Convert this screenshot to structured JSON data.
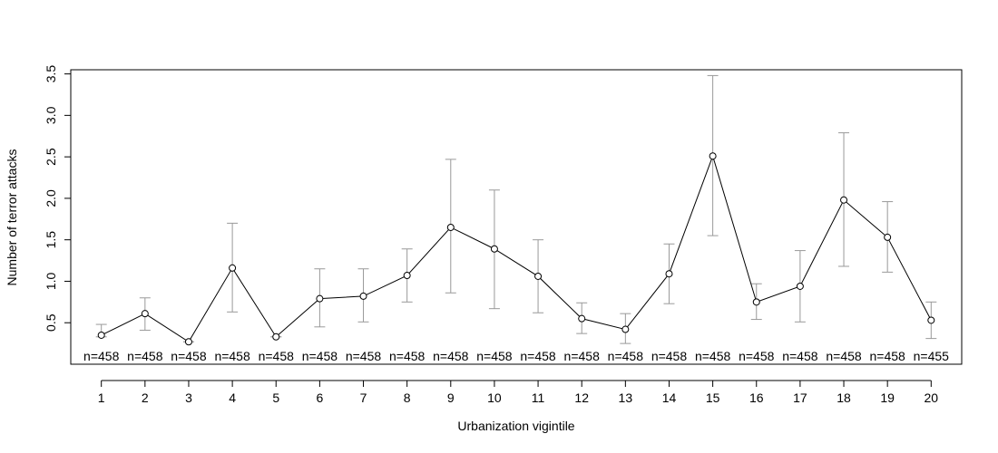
{
  "chart_data": {
    "type": "line",
    "xlabel": "Urbanization vigintile",
    "ylabel": "Number of terror attacks",
    "x": [
      1,
      2,
      3,
      4,
      5,
      6,
      7,
      8,
      9,
      10,
      11,
      12,
      13,
      14,
      15,
      16,
      17,
      18,
      19,
      20
    ],
    "xlim": [
      0.3,
      20.7
    ],
    "ylim": [
      0.0,
      3.55
    ],
    "yticks": [
      0.5,
      1.0,
      1.5,
      2.0,
      2.5,
      3.0,
      3.5
    ],
    "ytick_labels": [
      "0.5",
      "1.0",
      "1.5",
      "2.0",
      "2.5",
      "3.0",
      "3.5"
    ],
    "series": [
      {
        "values": [
          0.35,
          0.61,
          0.27,
          1.16,
          0.33,
          0.79,
          0.82,
          1.07,
          1.65,
          1.39,
          1.06,
          0.55,
          0.42,
          1.09,
          2.51,
          0.75,
          0.94,
          1.98,
          1.53,
          0.53
        ],
        "error_low": [
          0.33,
          0.41,
          0.27,
          0.63,
          0.33,
          0.45,
          0.51,
          0.75,
          0.86,
          0.67,
          0.62,
          0.37,
          0.25,
          0.73,
          1.55,
          0.54,
          0.51,
          1.18,
          1.11,
          0.31
        ],
        "error_high": [
          0.48,
          0.8,
          0.27,
          1.7,
          0.33,
          1.15,
          1.15,
          1.39,
          2.47,
          2.1,
          1.5,
          0.74,
          0.61,
          1.45,
          3.48,
          0.97,
          1.37,
          2.79,
          1.96,
          0.75
        ],
        "line_color": "#000000",
        "error_color": "#999999"
      }
    ],
    "n_labels": [
      "n=458",
      "n=458",
      "n=458",
      "n=458",
      "n=458",
      "n=458",
      "n=458",
      "n=458",
      "n=458",
      "n=458",
      "n=458",
      "n=458",
      "n=458",
      "n=458",
      "n=458",
      "n=458",
      "n=458",
      "n=458",
      "n=458",
      "n=455"
    ],
    "grid": false,
    "legend": false
  }
}
